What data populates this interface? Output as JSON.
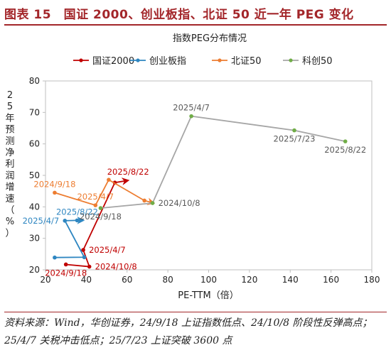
{
  "figure_title": "图表 15　国证 2000、创业板指、北证 50 近一年 PEG 变化",
  "source_note": "资料来源：Wind，华创证券，24/9/18 上证指数低点、24/10/8 阶段性反弹高点；25/4/7 关税冲击低点；25/7/23 上证突破 3600 点",
  "chart_data": {
    "type": "scatter",
    "title": "指数PEG分布情况",
    "xlabel": "PE-TTM（倍）",
    "ylabel": "25年预测净利润增速（%）",
    "xlim": [
      20,
      180
    ],
    "ylim": [
      20,
      80
    ],
    "xticks": [
      20,
      40,
      60,
      80,
      100,
      120,
      140,
      160,
      180
    ],
    "yticks": [
      20,
      30,
      40,
      50,
      60,
      70,
      80
    ],
    "grid": false,
    "legend_position": "top",
    "series": [
      {
        "name": "国证2000",
        "color": "#c00000",
        "marker_end": "arrow",
        "points": [
          [
            30,
            21.7
          ],
          [
            41.5,
            21.0
          ],
          [
            38.5,
            26.3
          ],
          [
            54,
            47.7
          ],
          [
            60.5,
            48.4
          ]
        ],
        "labels": [
          {
            "text": "2024/9/18",
            "point": 0,
            "position": "bottom"
          },
          {
            "text": "2024/10/8",
            "point": 1,
            "position": "right"
          },
          {
            "text": "2025/4/7",
            "point": 2,
            "position": "right"
          },
          {
            "text": "2025/8/22",
            "point": 4,
            "position": "top"
          }
        ]
      },
      {
        "name": "创业板指",
        "color": "#2e86c1",
        "marker_end": "arrow",
        "points": [
          [
            24.5,
            23.9
          ],
          [
            39,
            24.0
          ],
          [
            29.5,
            35.6
          ],
          [
            35.5,
            35.7
          ],
          [
            38.5,
            35.7
          ]
        ],
        "labels": [
          {
            "text": "2025/4/7",
            "point": 2,
            "position": "left"
          },
          {
            "text": "2025/8/22",
            "point": 3,
            "position": "top"
          }
        ]
      },
      {
        "name": "北证50",
        "color": "#ed7d31",
        "marker_end": "arrow",
        "points": [
          [
            24.5,
            44.5
          ],
          [
            44.5,
            40.5
          ],
          [
            51,
            48.6
          ],
          [
            68.5,
            42.0
          ],
          [
            73,
            41.2
          ]
        ],
        "labels": [
          {
            "text": "2024/9/18",
            "point": 0,
            "position": "top"
          },
          {
            "text": "2025/4/7",
            "point": 1,
            "position": "top"
          }
        ]
      },
      {
        "name": "科创50",
        "color": "#70ad47",
        "line_color": "#a6a6a6",
        "marker_end": "dot",
        "points": [
          [
            47,
            39.6
          ],
          [
            72.5,
            41.2
          ],
          [
            91.5,
            68.8
          ],
          [
            142,
            64.3
          ],
          [
            167,
            60.8
          ]
        ],
        "labels": [
          {
            "text": "2024/9/18",
            "point": 0,
            "position": "bottom"
          },
          {
            "text": "2024/10/8",
            "point": 1,
            "position": "right"
          },
          {
            "text": "2025/4/7",
            "point": 2,
            "position": "top"
          },
          {
            "text": "2025/7/23",
            "point": 3,
            "position": "bottom"
          },
          {
            "text": "2025/8/22",
            "point": 4,
            "position": "bottom"
          }
        ]
      }
    ]
  }
}
